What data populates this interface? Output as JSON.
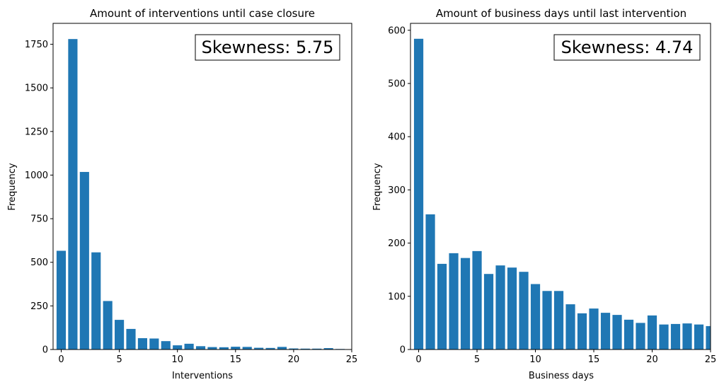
{
  "chart_data": [
    {
      "type": "bar",
      "title": "Amount of interventions until case closure",
      "xlabel": "Interventions",
      "ylabel": "Frequency",
      "xlim": [
        -0.7,
        25
      ],
      "ylim": [
        0,
        1870
      ],
      "xticks": [
        0,
        5,
        10,
        15,
        20,
        25
      ],
      "yticks": [
        0,
        250,
        500,
        750,
        1000,
        1250,
        1500,
        1750
      ],
      "color": "#1f77b4",
      "annotation": "Skewness: 5.75",
      "annotation_position": "top-right",
      "x": [
        0,
        1,
        2,
        3,
        4,
        5,
        6,
        7,
        8,
        9,
        10,
        11,
        12,
        13,
        14,
        15,
        16,
        17,
        18,
        19,
        20,
        21,
        22,
        23,
        24,
        25
      ],
      "values": [
        566,
        1780,
        1018,
        557,
        278,
        170,
        118,
        65,
        63,
        48,
        24,
        33,
        19,
        14,
        13,
        16,
        15,
        10,
        9,
        15,
        6,
        5,
        5,
        8,
        3,
        2
      ]
    },
    {
      "type": "bar",
      "title": "Amount of business days until last intervention",
      "xlabel": "Business days",
      "ylabel": "Frequency",
      "xlim": [
        -0.7,
        25
      ],
      "ylim": [
        0,
        613
      ],
      "xticks": [
        0,
        5,
        10,
        15,
        20,
        25
      ],
      "yticks": [
        0,
        100,
        200,
        300,
        400,
        500,
        600
      ],
      "color": "#1f77b4",
      "annotation": "Skewness: 4.74",
      "annotation_position": "top-right",
      "x": [
        0,
        1,
        2,
        3,
        4,
        5,
        6,
        7,
        8,
        9,
        10,
        11,
        12,
        13,
        14,
        15,
        16,
        17,
        18,
        19,
        20,
        21,
        22,
        23,
        24,
        25
      ],
      "values": [
        584,
        254,
        161,
        181,
        172,
        185,
        142,
        158,
        154,
        146,
        123,
        110,
        110,
        85,
        68,
        77,
        69,
        65,
        56,
        50,
        64,
        47,
        48,
        49,
        47,
        44
      ]
    }
  ]
}
